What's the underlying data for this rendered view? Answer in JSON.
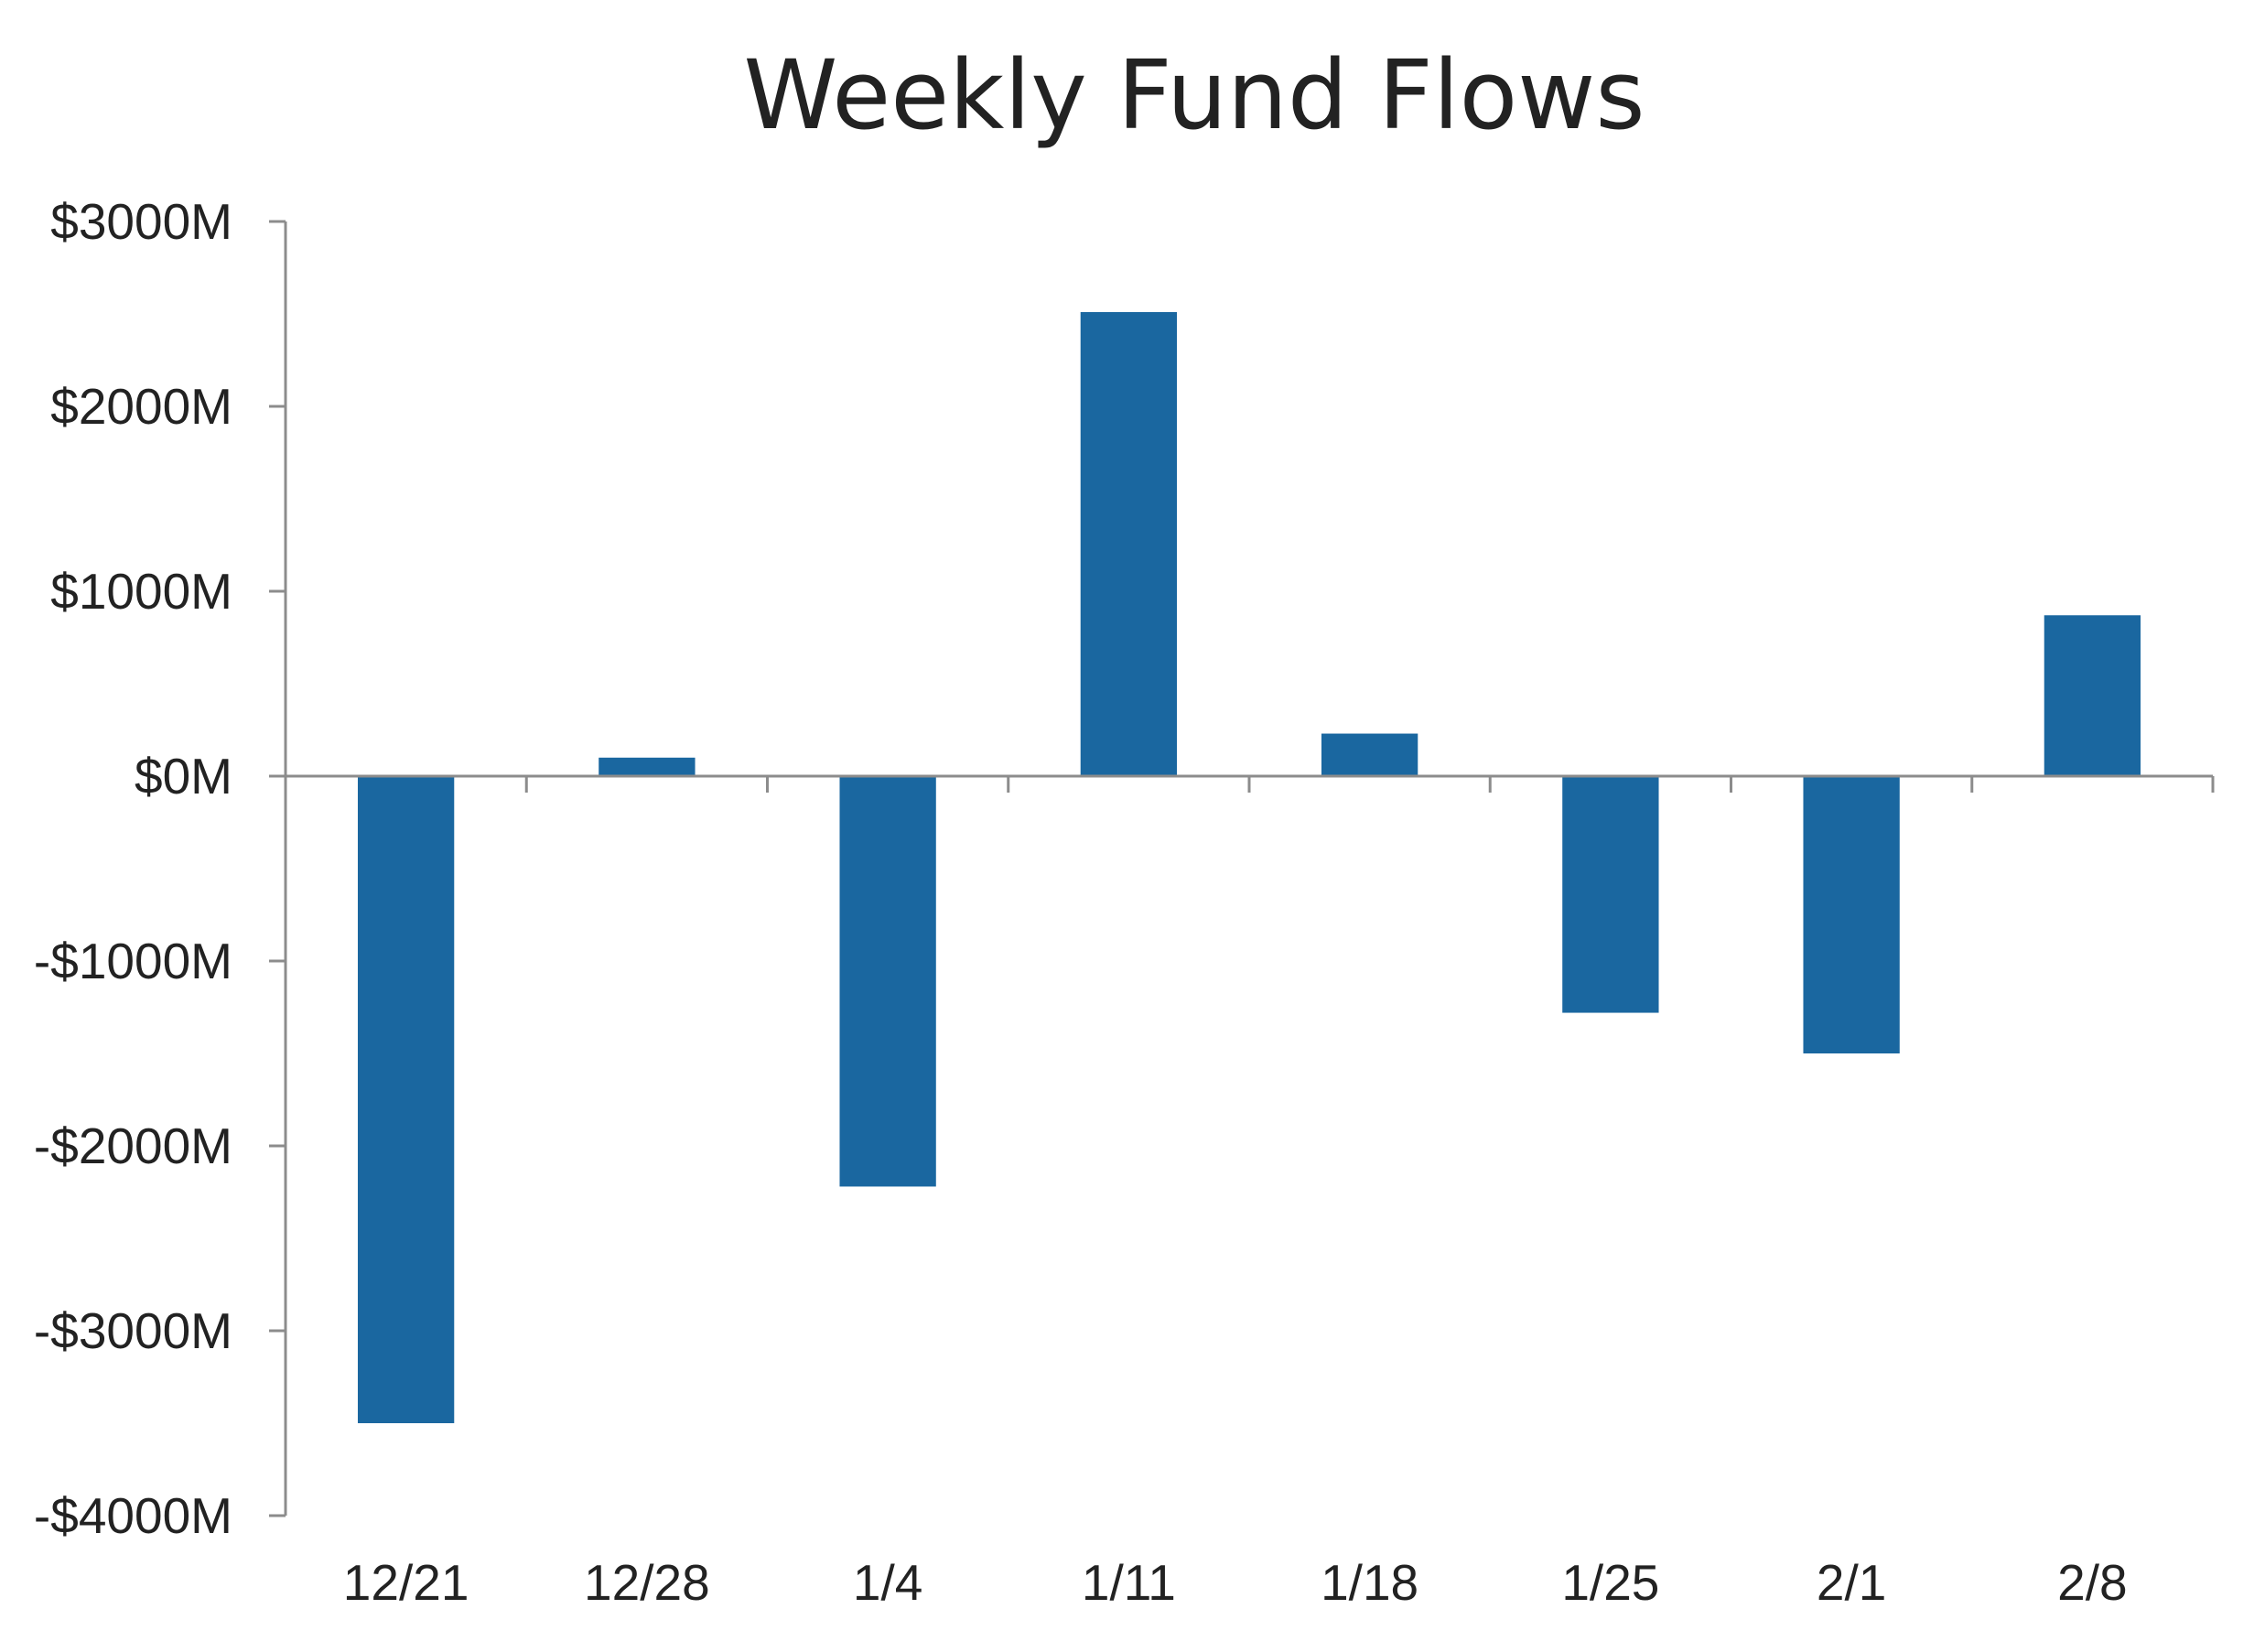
{
  "chart_data": {
    "type": "bar",
    "title": "Weekly Fund Flows",
    "xlabel": "",
    "ylabel": "",
    "categories": [
      "12/21",
      "12/28",
      "1/4",
      "1/11",
      "1/18",
      "1/25",
      "2/1",
      "2/8"
    ],
    "values": [
      -3500,
      100,
      -2220,
      2510,
      230,
      -1280,
      -1500,
      870
    ],
    "ylim": [
      -4000,
      3000
    ],
    "yticks": [
      3000,
      2000,
      1000,
      0,
      -1000,
      -2000,
      -3000,
      -4000
    ],
    "ytick_labels": [
      "$3000M",
      "$2000M",
      "$1000M",
      "$0M",
      "-$1000M",
      "-$2000M",
      "-$3000M",
      "-$4000M"
    ],
    "grid": false,
    "legend": "none",
    "bar_color": "#1a67a0",
    "axis_color": "#8c8c8c",
    "text_color": "#222222"
  }
}
